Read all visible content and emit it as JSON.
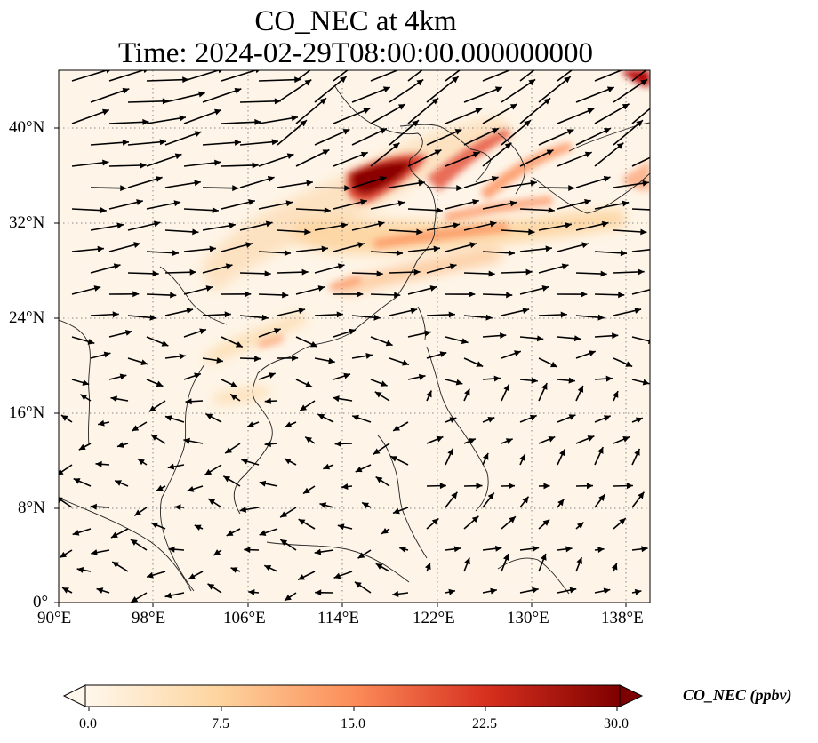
{
  "title": {
    "line1": "CO_NEC at 4km",
    "line2": "Time: 2024-02-29T08:00:00.000000000"
  },
  "map": {
    "extent": {
      "lon": [
        90,
        139
      ],
      "lat": [
        0,
        45
      ]
    },
    "lon_ticks": [
      90,
      98,
      106,
      114,
      122,
      130,
      138
    ],
    "lat_ticks": [
      0,
      8,
      16,
      24,
      32,
      40
    ],
    "lon_labels": [
      "90°E",
      "98°E",
      "106°E",
      "114°E",
      "122°E",
      "130°E",
      "138°E"
    ],
    "lat_labels": [
      "0°",
      "8°N",
      "16°N",
      "24°N",
      "32°N",
      "40°N"
    ],
    "gridlines": "dotted",
    "coastlines": true,
    "field_name": "CO_NEC",
    "vectors": "wind"
  },
  "colorbar": {
    "label": "CO_NEC (ppbv)",
    "ticks": [
      "0.0",
      "7.5",
      "15.0",
      "22.5",
      "30.0"
    ],
    "range": [
      0,
      30
    ],
    "colormap": "OrRd",
    "extend": "both",
    "colors": [
      "#fff7ec",
      "#fdd49e",
      "#fc8d59",
      "#d7301f",
      "#7f0000"
    ]
  }
}
